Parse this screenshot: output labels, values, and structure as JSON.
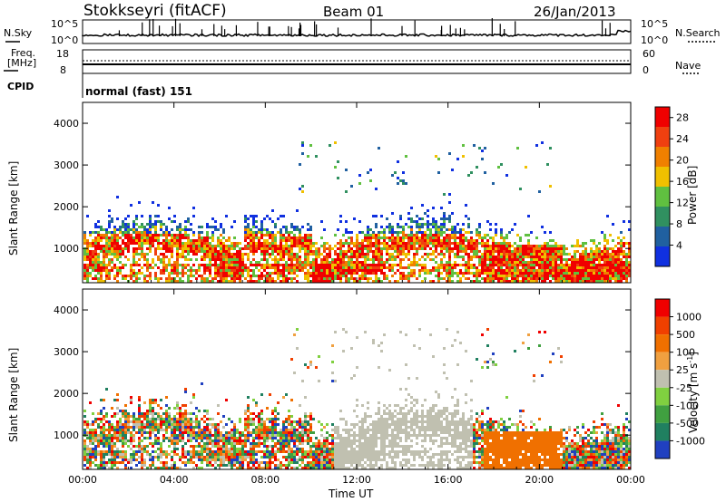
{
  "header": {
    "station": "Stokkseyri (fitACF)",
    "beam": "Beam 01",
    "date": "26/Jan/2013"
  },
  "strips": {
    "nsky_label": "N.Sky",
    "nsky_ticks": [
      "10^5",
      "10^0"
    ],
    "nsearch_label": "N.Search",
    "nsearch_ticks": [
      "10^5",
      "10^0"
    ],
    "freq_label": "Freq.",
    "freq_unit": "[MHz]",
    "freq_ticks": [
      "18",
      "8"
    ],
    "nave_label": "Nave",
    "nave_ticks": [
      "60",
      "0"
    ],
    "cpid_label": "CPID",
    "cpid_value": "normal (fast) 151"
  },
  "chart_data": [
    {
      "type": "heatmap",
      "panel": "power",
      "title": "",
      "xlabel": "Time UT",
      "ylabel": "Slant Range [km]",
      "x_ticks": [
        "00:00",
        "04:00",
        "08:00",
        "12:00",
        "16:00",
        "20:00",
        "00:00"
      ],
      "y_ticks": [
        "1000",
        "2000",
        "3000",
        "4000"
      ],
      "xlim_hours": [
        0,
        24
      ],
      "ylim_km": [
        180,
        4500
      ],
      "colorbar": {
        "label": "Power [dB]",
        "ticks": [
          "4",
          "8",
          "12",
          "16",
          "20",
          "24",
          "28"
        ],
        "range": [
          0,
          30
        ],
        "colors": [
          "#1030e0",
          "#2060a0",
          "#309060",
          "#60c040",
          "#f0c000",
          "#f08000",
          "#f04010",
          "#f00000"
        ]
      }
    },
    {
      "type": "heatmap",
      "panel": "velocity",
      "title": "",
      "xlabel": "Time UT",
      "ylabel": "Slant Range [km]",
      "x_ticks": [
        "00:00",
        "04:00",
        "08:00",
        "12:00",
        "16:00",
        "20:00",
        "00:00"
      ],
      "y_ticks": [
        "1000",
        "2000",
        "3000",
        "4000"
      ],
      "xlim_hours": [
        0,
        24
      ],
      "ylim_km": [
        180,
        4500
      ],
      "colorbar": {
        "label": "Velocity [m s",
        "label_sup": "-1",
        "label_end": "]",
        "ticks": [
          "1000",
          "500",
          "100",
          "25",
          "-25",
          "-100",
          "-500",
          "-1000"
        ],
        "colors": [
          "#2040c0",
          "#208060",
          "#40a040",
          "#80d040",
          "#c0c0b0",
          "#f0a040",
          "#f07000",
          "#f04000",
          "#f00000"
        ]
      }
    }
  ]
}
